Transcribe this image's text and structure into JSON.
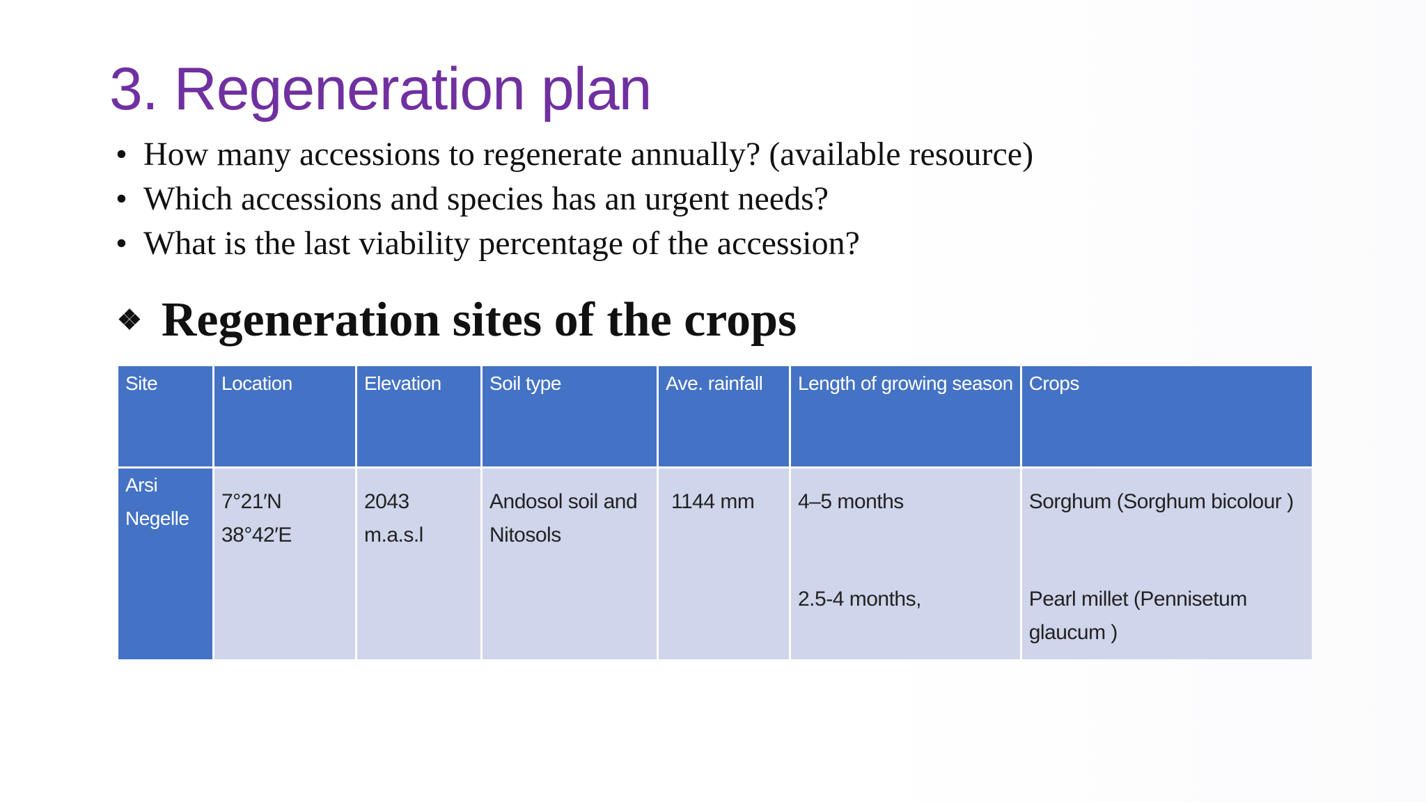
{
  "slide": {
    "title": "3. Regeneration plan",
    "bullets": [
      "How many accessions to regenerate annually? (available resource)",
      "Which accessions and species has an urgent needs?",
      "What is the last viability percentage of the accession?"
    ],
    "subheading": "Regeneration sites of  the crops",
    "subheading_bullet_icon": "diamond-bullet-icon"
  },
  "table": {
    "headers": {
      "site": "Site",
      "location": "Location",
      "elevation": "Elevation",
      "soil": "Soil type",
      "rainfall": "Ave. rainfall",
      "season": "Length of growing season",
      "crops": "Crops"
    },
    "row": {
      "site_line1": "Arsi",
      "site_line2": "Negelle",
      "location": "7°21′N 38°42′E",
      "elevation": "2043 m.a.s.l",
      "soil_line1": "Andosol soil and",
      "soil_line2": "Nitosols",
      "rainfall": "1144 mm",
      "season_1": "4–5 months",
      "season_2": "2.5-4 months,",
      "crop_1": "Sorghum (Sorghum bicolour )",
      "crop_2": "Pearl millet (Pennisetum glaucum )"
    }
  },
  "colors": {
    "title": "#7030a0",
    "header_fill": "#4472c4",
    "body_fill": "#cfd5ea"
  }
}
